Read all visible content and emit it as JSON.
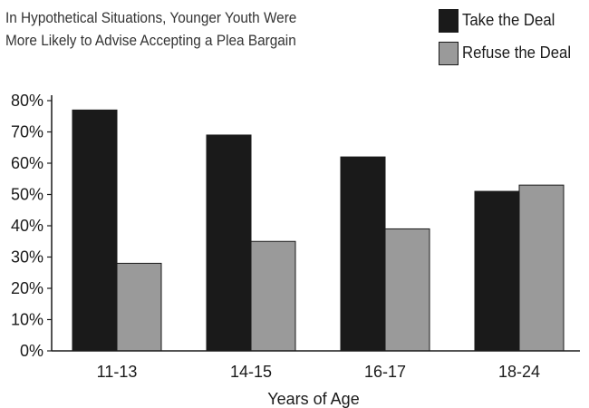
{
  "chart_data": {
    "type": "bar",
    "title": [
      "In Hypothetical Situations, Younger Youth Were",
      "More Likely to Advise Accepting a Plea Bargain"
    ],
    "xlabel": "Years of Age",
    "ylabel": "",
    "categories": [
      "11-13",
      "14-15",
      "16-17",
      "18-24"
    ],
    "series": [
      {
        "name": "Take the Deal",
        "values": [
          77,
          69,
          62,
          51
        ],
        "color": "#1a1a1a"
      },
      {
        "name": "Refuse the Deal",
        "values": [
          28,
          35,
          39,
          53
        ],
        "color": "#9a9a9a"
      }
    ],
    "ylim": [
      0,
      80
    ],
    "yticks": [
      "0%",
      "10%",
      "20%",
      "30%",
      "40%",
      "50%",
      "60%",
      "70%",
      "80%"
    ],
    "legend_position": "top-right",
    "grid": false
  }
}
